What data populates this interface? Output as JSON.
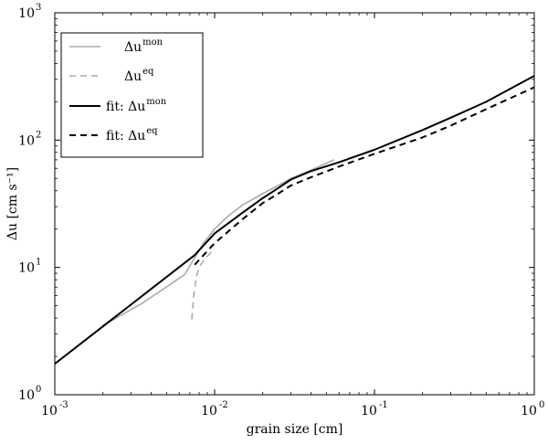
{
  "chart_data": {
    "type": "line",
    "xscale": "log",
    "yscale": "log",
    "xlim": [
      0.001,
      1
    ],
    "ylim": [
      1,
      1000
    ],
    "xlabel": "grain size [cm]",
    "ylabel": "Δu [cm s⁻¹]",
    "x_ticks": [
      {
        "base": "10",
        "exp": "-3",
        "value": 0.001
      },
      {
        "base": "10",
        "exp": "-2",
        "value": 0.01
      },
      {
        "base": "10",
        "exp": "-1",
        "value": 0.1
      },
      {
        "base": "10",
        "exp": "0",
        "value": 1
      }
    ],
    "y_ticks": [
      {
        "base": "10",
        "exp": "0",
        "value": 1
      },
      {
        "base": "10",
        "exp": "1",
        "value": 10
      },
      {
        "base": "10",
        "exp": "2",
        "value": 100
      },
      {
        "base": "10",
        "exp": "3",
        "value": 1000
      }
    ],
    "legend_position": "top-left",
    "series": [
      {
        "name": "Δu^mon",
        "legend_main": "Δu",
        "legend_sup": "mon",
        "color": "#aaaaaa",
        "dash": "solid",
        "points": [
          [
            0.002,
            3.5
          ],
          [
            0.0035,
            5.2
          ],
          [
            0.0065,
            8.8
          ],
          [
            0.0085,
            15.5
          ],
          [
            0.01,
            20
          ],
          [
            0.012,
            25
          ],
          [
            0.015,
            31
          ],
          [
            0.02,
            38
          ],
          [
            0.025,
            44
          ],
          [
            0.03,
            50
          ],
          [
            0.04,
            58
          ],
          [
            0.05,
            66
          ],
          [
            0.056,
            70
          ]
        ]
      },
      {
        "name": "Δu^eq",
        "legend_main": "Δu",
        "legend_sup": "eq",
        "color": "#aaaaaa",
        "dash": "dashed",
        "points": [
          [
            0.0072,
            3.9
          ],
          [
            0.0074,
            6.0
          ],
          [
            0.0077,
            8.6
          ],
          [
            0.0082,
            10.6
          ],
          [
            0.009,
            12.2
          ],
          [
            0.01,
            14
          ]
        ]
      },
      {
        "name": "fit: Δu^mon",
        "legend_main": "fit: Δu",
        "legend_sup": "mon",
        "color": "#000000",
        "dash": "solid",
        "points": [
          [
            0.001,
            1.75
          ],
          [
            0.0075,
            12.5
          ],
          [
            0.01,
            18.5
          ],
          [
            0.015,
            27
          ],
          [
            0.02,
            35
          ],
          [
            0.025,
            42
          ],
          [
            0.03,
            49
          ],
          [
            0.04,
            57
          ],
          [
            0.06,
            67
          ],
          [
            0.1,
            84
          ],
          [
            0.2,
            120
          ],
          [
            0.3,
            150
          ],
          [
            0.5,
            200
          ],
          [
            1,
            320
          ]
        ]
      },
      {
        "name": "fit: Δu^eq",
        "legend_main": "fit: Δu",
        "legend_sup": "eq",
        "color": "#000000",
        "dash": "dashed",
        "points": [
          [
            0.0075,
            10.5
          ],
          [
            0.01,
            15.5
          ],
          [
            0.015,
            24
          ],
          [
            0.02,
            32
          ],
          [
            0.025,
            38
          ],
          [
            0.03,
            44
          ],
          [
            0.04,
            51
          ],
          [
            0.06,
            62
          ],
          [
            0.1,
            78
          ],
          [
            0.2,
            105
          ],
          [
            0.3,
            130
          ],
          [
            0.5,
            175
          ],
          [
            1,
            260
          ]
        ]
      }
    ]
  }
}
